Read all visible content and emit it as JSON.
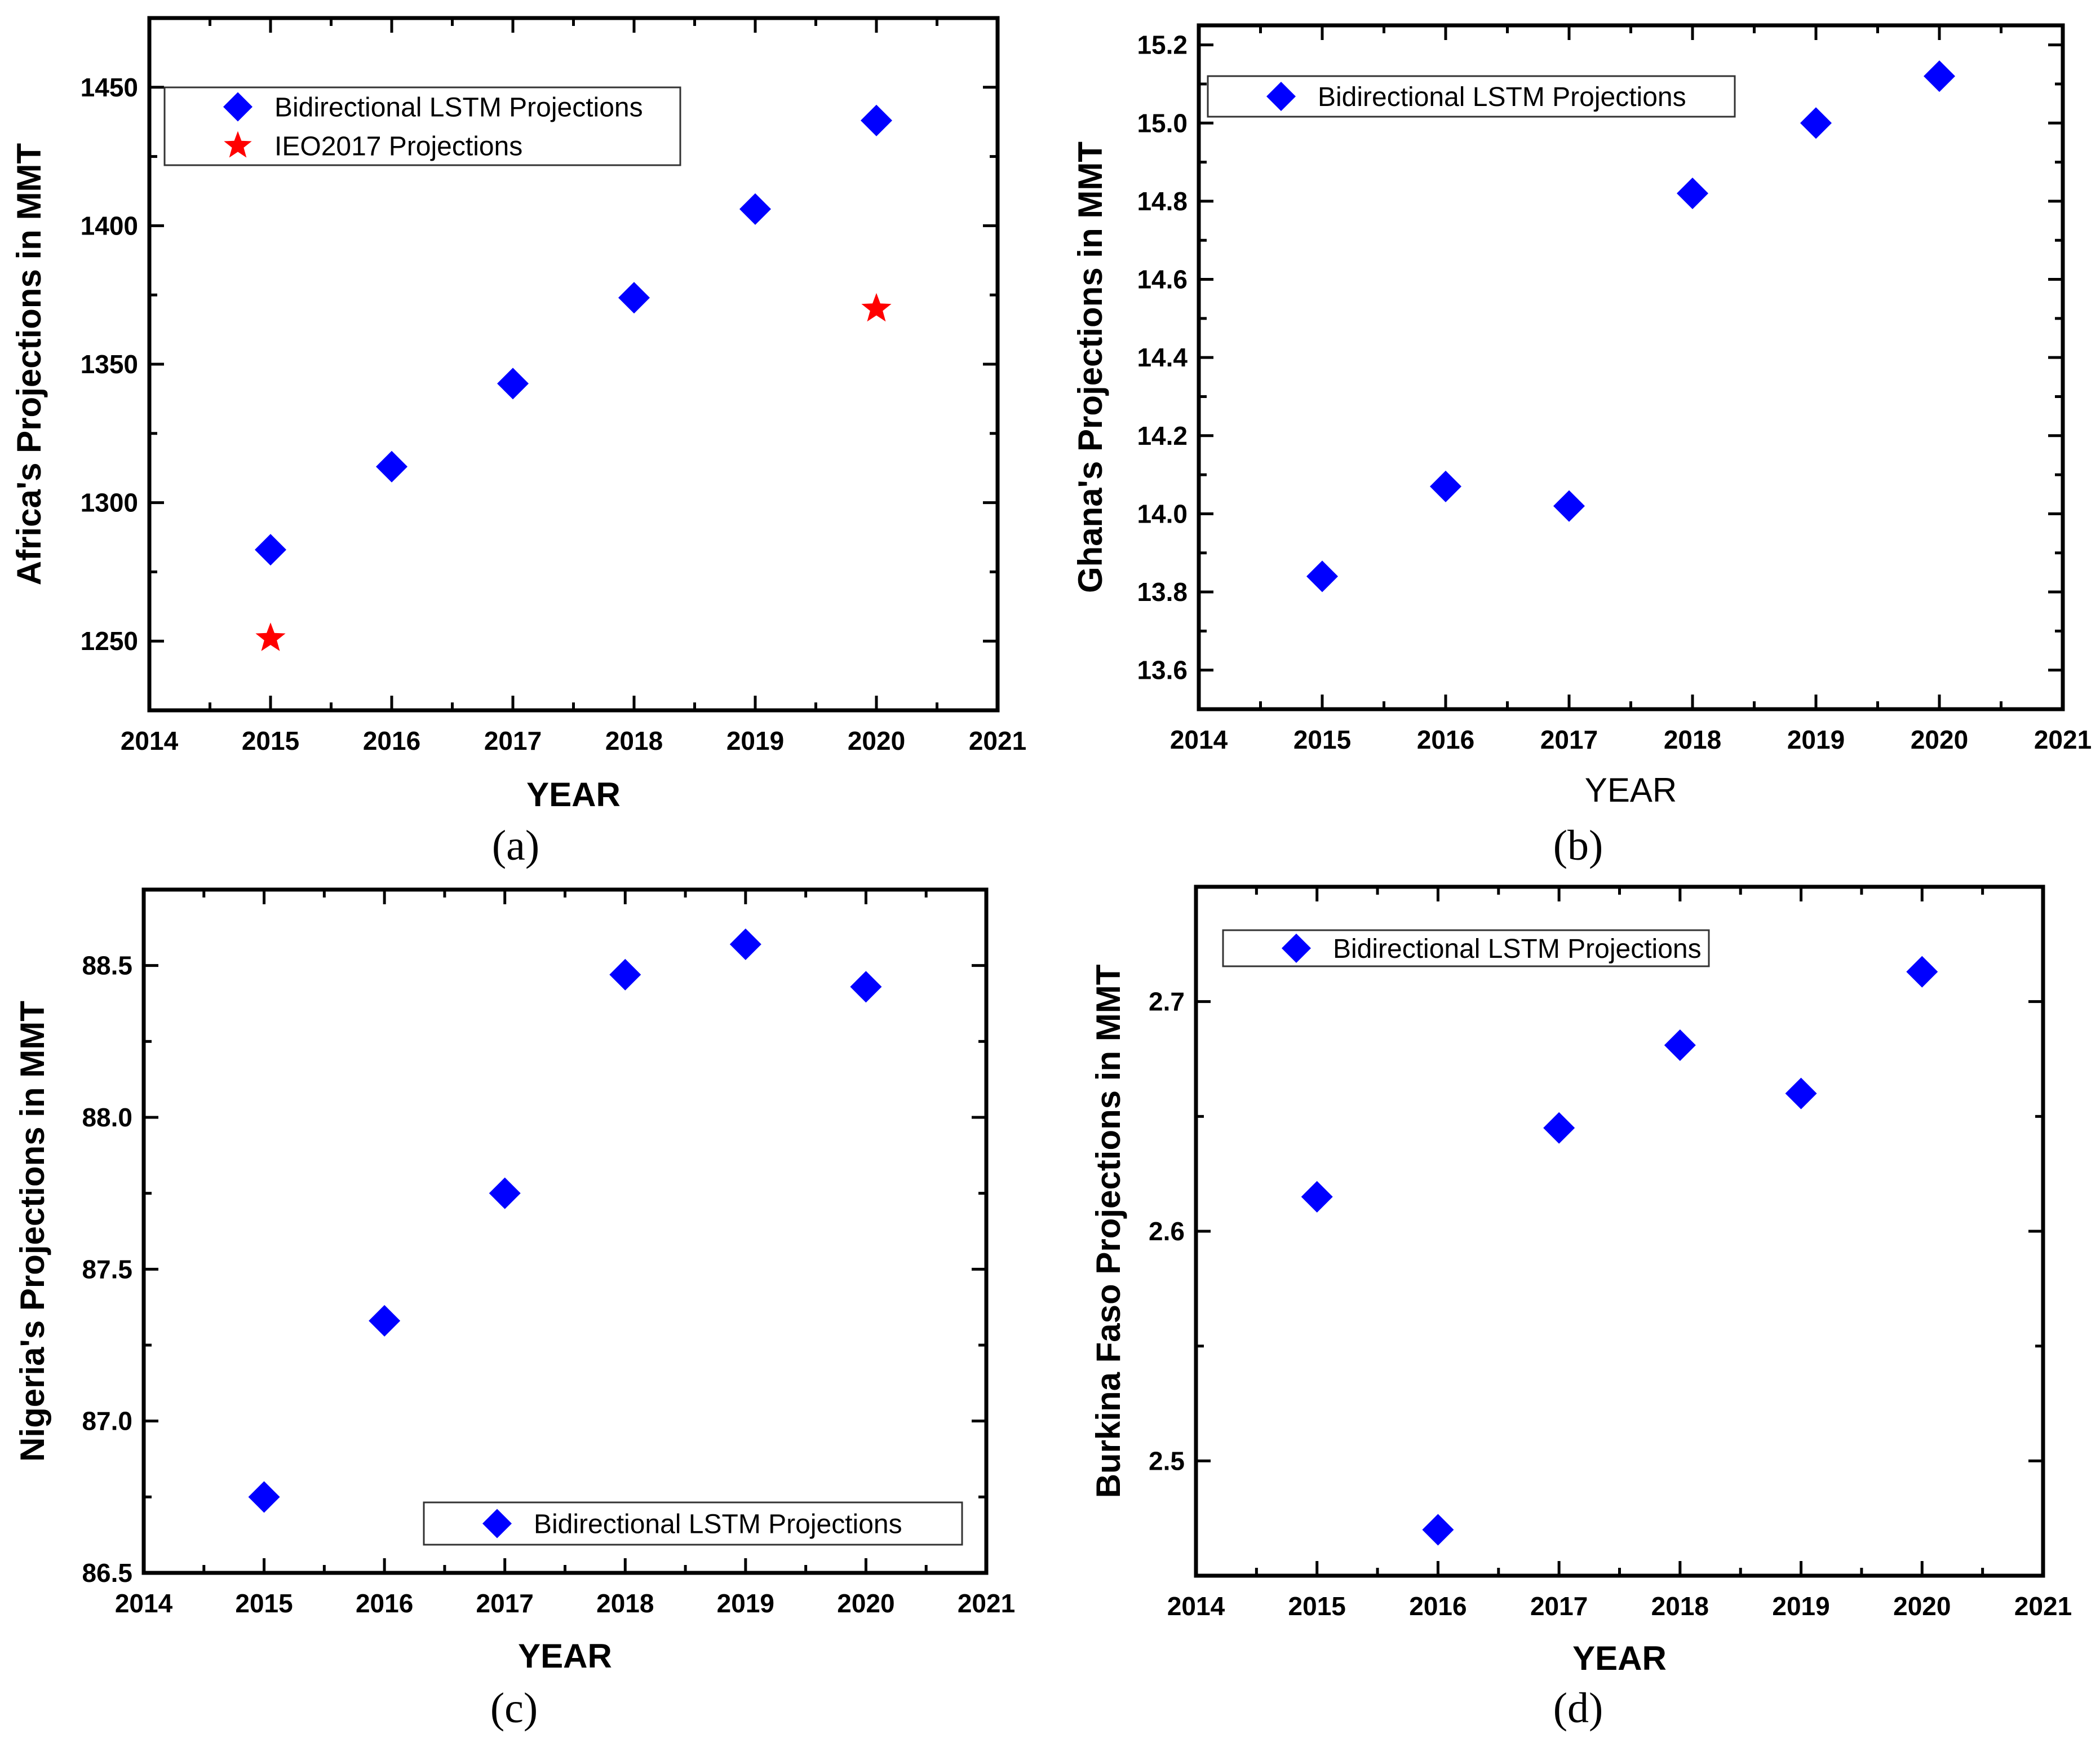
{
  "colors": {
    "lstm": "#0000ff",
    "ieo": "#ff0000",
    "axis": "#000000"
  },
  "chart_data": [
    {
      "id": "a",
      "caption": "(a)",
      "type": "scatter",
      "xlabel": "YEAR",
      "ylabel": "Africa's Projections in MMT",
      "xlim": [
        2014,
        2021
      ],
      "ylim": [
        1225,
        1475
      ],
      "xticks": [
        "2014",
        "2015",
        "2016",
        "2017",
        "2018",
        "2019",
        "2020",
        "2021"
      ],
      "yticks": [
        "1250",
        "1300",
        "1350",
        "1400",
        "1450"
      ],
      "legend_position": "top-left",
      "series": [
        {
          "name": "Bidirectional LSTM Projections",
          "marker": "diamond",
          "x": [
            2015,
            2016,
            2017,
            2018,
            2019,
            2020
          ],
          "y": [
            1283,
            1313,
            1343,
            1374,
            1406,
            1438
          ]
        },
        {
          "name": "IEO2017 Projections",
          "marker": "star",
          "x": [
            2015,
            2020
          ],
          "y": [
            1251,
            1370
          ]
        }
      ]
    },
    {
      "id": "b",
      "caption": "(b)",
      "type": "scatter",
      "xlabel": "YEAR",
      "ylabel": "Ghana's Projections in MMT",
      "xlim": [
        2014,
        2021
      ],
      "ylim": [
        13.5,
        15.25
      ],
      "xticks": [
        "2014",
        "2015",
        "2016",
        "2017",
        "2018",
        "2019",
        "2020",
        "2021"
      ],
      "yticks": [
        "13.6",
        "13.8",
        "14.0",
        "14.2",
        "14.4",
        "14.6",
        "14.8",
        "15.0",
        "15.2"
      ],
      "legend_position": "top-left",
      "series": [
        {
          "name": "Bidirectional LSTM Projections",
          "marker": "diamond",
          "x": [
            2015,
            2016,
            2017,
            2018,
            2019,
            2020
          ],
          "y": [
            13.84,
            14.07,
            14.02,
            14.82,
            15.0,
            15.12
          ]
        }
      ]
    },
    {
      "id": "c",
      "caption": "(c)",
      "type": "scatter",
      "xlabel": "YEAR",
      "ylabel": "Nigeria's Projections in MMT",
      "xlim": [
        2014,
        2021
      ],
      "ylim": [
        86.5,
        88.75
      ],
      "xticks": [
        "2014",
        "2015",
        "2016",
        "2017",
        "2018",
        "2019",
        "2020",
        "2021"
      ],
      "yticks": [
        "86.5",
        "87.0",
        "87.5",
        "88.0",
        "88.5"
      ],
      "legend_position": "bottom-right",
      "series": [
        {
          "name": "Bidirectional LSTM Projections",
          "marker": "diamond",
          "x": [
            2015,
            2016,
            2017,
            2018,
            2019,
            2020
          ],
          "y": [
            86.75,
            87.33,
            87.75,
            88.47,
            88.57,
            88.43
          ]
        }
      ]
    },
    {
      "id": "d",
      "caption": "(d)",
      "type": "scatter",
      "xlabel": "YEAR",
      "ylabel": "Burkina Faso Projections in MMT",
      "xlim": [
        2014,
        2021
      ],
      "ylim": [
        2.45,
        2.75
      ],
      "xticks": [
        "2014",
        "2015",
        "2016",
        "2017",
        "2018",
        "2019",
        "2020",
        "2021"
      ],
      "yticks": [
        "2.5",
        "2.6",
        "2.7"
      ],
      "legend_position": "top-left",
      "series": [
        {
          "name": "Bidirectional LSTM Projections",
          "marker": "diamond",
          "x": [
            2015,
            2016,
            2017,
            2018,
            2019,
            2020
          ],
          "y": [
            2.615,
            2.47,
            2.645,
            2.681,
            2.66,
            2.713
          ]
        }
      ]
    }
  ]
}
